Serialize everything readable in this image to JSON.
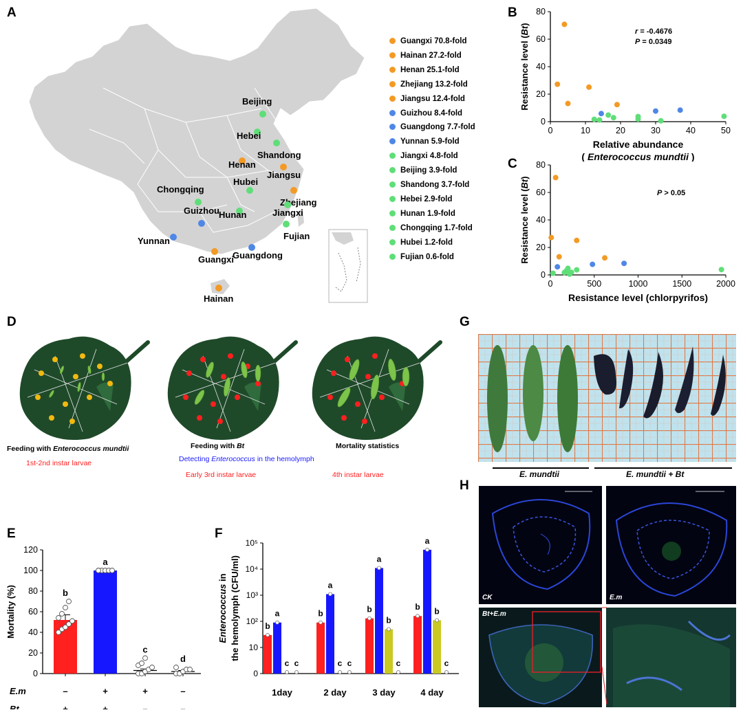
{
  "panels": {
    "a": "A",
    "b": "B",
    "c": "C",
    "d": "D",
    "e": "E",
    "f": "F",
    "g": "G",
    "h": "H"
  },
  "colors": {
    "orange": "#f39a25",
    "blue": "#4f87e6",
    "green": "#5fde78",
    "red": "#ff2020",
    "bar_blue": "#1717ff",
    "olive": "#c9c922",
    "map_fill": "#d3d3d3",
    "leaf": "#1f4a2a"
  },
  "map": {
    "provinces": [
      {
        "name": "Beijing",
        "color": "green"
      },
      {
        "name": "Hebei",
        "color": "green"
      },
      {
        "name": "Shandong",
        "color": "green"
      },
      {
        "name": "Henan",
        "color": "orange"
      },
      {
        "name": "Jiangsu",
        "color": "orange"
      },
      {
        "name": "Hubei",
        "color": "green"
      },
      {
        "name": "Chongqing",
        "color": "green"
      },
      {
        "name": "Zhejiang",
        "color": "orange"
      },
      {
        "name": "Jiangxi",
        "color": "green"
      },
      {
        "name": "Hunan",
        "color": "green"
      },
      {
        "name": "Guizhou",
        "color": "blue"
      },
      {
        "name": "Fujian",
        "color": "green"
      },
      {
        "name": "Yunnan",
        "color": "blue"
      },
      {
        "name": "Guangxi",
        "color": "orange"
      },
      {
        "name": "Guangdong",
        "color": "blue"
      },
      {
        "name": "Hainan",
        "color": "orange"
      }
    ],
    "legend": [
      {
        "text": "Guangxi 70.8-fold",
        "color": "orange"
      },
      {
        "text": "Hainan 27.2-fold",
        "color": "orange"
      },
      {
        "text": "Henan 25.1-fold",
        "color": "orange"
      },
      {
        "text": "Zhejiang 13.2-fold",
        "color": "orange"
      },
      {
        "text": "Jiangsu 12.4-fold",
        "color": "orange"
      },
      {
        "text": "Guizhou 8.4-fold",
        "color": "blue"
      },
      {
        "text": "Guangdong 7.7-fold",
        "color": "blue"
      },
      {
        "text": "Yunnan 5.9-fold",
        "color": "blue"
      },
      {
        "text": "Jiangxi 4.8-fold",
        "color": "green"
      },
      {
        "text": "Beijing 3.9-fold",
        "color": "green"
      },
      {
        "text": "Shandong 3.7-fold",
        "color": "green"
      },
      {
        "text": "Hebei 2.9-fold",
        "color": "green"
      },
      {
        "text": "Hunan 1.9-fold",
        "color": "green"
      },
      {
        "text": "Chongqing 1.7-fold",
        "color": "green"
      },
      {
        "text": "Hubei 1.2-fold",
        "color": "green"
      },
      {
        "text": "Fujian 0.6-fold",
        "color": "green"
      }
    ]
  },
  "workflow": {
    "step1": {
      "prefix": "Feeding with ",
      "italic": "Enterococcus mundtii",
      "stage": "1st-2nd instar larvae"
    },
    "step2": {
      "prefix": "Feeding with ",
      "italic": "Bt",
      "stage": "Early 3rd instar larvae"
    },
    "step3": {
      "label": "Mortality statistics",
      "stage": "4th instar larvae"
    },
    "detect": {
      "prefix": "Detecting ",
      "italic": "Enterococcus",
      "suffix": " in the hemolymph"
    }
  },
  "photo": {
    "label_left": "E. mundtii",
    "label_right": "E. mundtii + Bt"
  },
  "micro": {
    "labels": [
      "CK",
      "E.m",
      "Bt+E.m",
      ""
    ]
  },
  "chart_data": [
    {
      "id": "B",
      "type": "scatter",
      "xlabel": "Relative abundance",
      "xlabel2": "( Enterococcus mundtii )",
      "ylabel": "Resistance level (Bt)",
      "xlim": [
        0,
        50
      ],
      "ylim": [
        0,
        80
      ],
      "xticks": [
        0,
        10,
        20,
        30,
        40,
        50
      ],
      "yticks": [
        0,
        20,
        40,
        60,
        80
      ],
      "annotation_r": "r = -0.4676",
      "annotation_p": "P = 0.0349",
      "points": [
        {
          "x": 4,
          "y": 70.8,
          "c": "orange"
        },
        {
          "x": 2,
          "y": 27.2,
          "c": "orange"
        },
        {
          "x": 11,
          "y": 25.1,
          "c": "orange"
        },
        {
          "x": 5,
          "y": 13.2,
          "c": "orange"
        },
        {
          "x": 19,
          "y": 12.4,
          "c": "orange"
        },
        {
          "x": 37,
          "y": 8.4,
          "c": "blue"
        },
        {
          "x": 30,
          "y": 7.7,
          "c": "blue"
        },
        {
          "x": 14.5,
          "y": 5.9,
          "c": "blue"
        },
        {
          "x": 16.5,
          "y": 4.8,
          "c": "green"
        },
        {
          "x": 49.5,
          "y": 3.9,
          "c": "green"
        },
        {
          "x": 25,
          "y": 3.7,
          "c": "green"
        },
        {
          "x": 18,
          "y": 2.9,
          "c": "green"
        },
        {
          "x": 25,
          "y": 1.9,
          "c": "green"
        },
        {
          "x": 12.5,
          "y": 1.7,
          "c": "green"
        },
        {
          "x": 14,
          "y": 1.2,
          "c": "green"
        },
        {
          "x": 31.5,
          "y": 0.6,
          "c": "green"
        }
      ]
    },
    {
      "id": "C",
      "type": "scatter",
      "xlabel": "Resistance level (chlorpyrifos)",
      "ylabel": "Resistance level (Bt)",
      "xlim": [
        0,
        2000
      ],
      "ylim": [
        0,
        80
      ],
      "xticks": [
        0,
        500,
        1000,
        1500,
        2000
      ],
      "yticks": [
        0,
        20,
        40,
        60,
        80
      ],
      "annotation_p": "P > 0.05",
      "points": [
        {
          "x": 60,
          "y": 70.8,
          "c": "orange"
        },
        {
          "x": 10,
          "y": 27.2,
          "c": "orange"
        },
        {
          "x": 300,
          "y": 25.1,
          "c": "orange"
        },
        {
          "x": 100,
          "y": 13.2,
          "c": "orange"
        },
        {
          "x": 620,
          "y": 12.4,
          "c": "orange"
        },
        {
          "x": 840,
          "y": 8.4,
          "c": "blue"
        },
        {
          "x": 480,
          "y": 7.7,
          "c": "blue"
        },
        {
          "x": 80,
          "y": 5.9,
          "c": "blue"
        },
        {
          "x": 200,
          "y": 4.8,
          "c": "green"
        },
        {
          "x": 1950,
          "y": 3.9,
          "c": "green"
        },
        {
          "x": 300,
          "y": 3.7,
          "c": "green"
        },
        {
          "x": 180,
          "y": 2.9,
          "c": "green"
        },
        {
          "x": 240,
          "y": 1.9,
          "c": "green"
        },
        {
          "x": 160,
          "y": 1.7,
          "c": "green"
        },
        {
          "x": 30,
          "y": 1.2,
          "c": "green"
        },
        {
          "x": 220,
          "y": 0.6,
          "c": "green"
        }
      ]
    },
    {
      "id": "E",
      "type": "bar",
      "ylabel": "Mortality (%)",
      "ylim": [
        0,
        120
      ],
      "yticks": [
        0,
        20,
        40,
        60,
        80,
        100,
        120
      ],
      "row_labels": [
        "E.m",
        "Bt"
      ],
      "groups": [
        {
          "value": 52,
          "err": 5,
          "color": "red",
          "letter": "b",
          "em": "–",
          "bt": "+",
          "dots": [
            40,
            43,
            45,
            48,
            51,
            54,
            58,
            64,
            70
          ]
        },
        {
          "value": 100,
          "err": 0,
          "color": "bar_blue",
          "letter": "a",
          "em": "+",
          "bt": "+",
          "dots": [
            100,
            100,
            100,
            100,
            100,
            100
          ]
        },
        {
          "value": 3,
          "err": 1.5,
          "color": "none",
          "letter": "c",
          "em": "+",
          "bt": "–",
          "dots": [
            0,
            0,
            2,
            4,
            6,
            8,
            10,
            15
          ]
        },
        {
          "value": 2,
          "err": 1,
          "color": "none",
          "letter": "d",
          "em": "–",
          "bt": "–",
          "dots": [
            0,
            0,
            2,
            4,
            4,
            6
          ]
        }
      ]
    },
    {
      "id": "F",
      "type": "bar",
      "scale": "log",
      "ylabel1": "Enterococcus in",
      "ylabel2": "the hemolymph (CFU/ml)",
      "yticks": [
        "0",
        "10",
        "10²",
        "10³",
        "10⁴",
        "10⁵"
      ],
      "categories": [
        "1day",
        "2 day",
        "3 day",
        "4 day"
      ],
      "series_colors": [
        "red",
        "bar_blue",
        "olive",
        "none"
      ],
      "groups": [
        {
          "bars": [
            {
              "v": 30,
              "l": "b"
            },
            {
              "v": 90,
              "l": "a"
            },
            {
              "v": 0,
              "l": "c"
            },
            {
              "v": 0,
              "l": "c"
            }
          ]
        },
        {
          "bars": [
            {
              "v": 90,
              "l": "b"
            },
            {
              "v": 1100,
              "l": "a"
            },
            {
              "v": 0,
              "l": "c"
            },
            {
              "v": 0,
              "l": "c"
            }
          ]
        },
        {
          "bars": [
            {
              "v": 130,
              "l": "b"
            },
            {
              "v": 11000,
              "l": "a"
            },
            {
              "v": 50,
              "l": "b"
            },
            {
              "v": 0,
              "l": "c"
            }
          ]
        },
        {
          "bars": [
            {
              "v": 160,
              "l": "b"
            },
            {
              "v": 55000,
              "l": "a"
            },
            {
              "v": 110,
              "l": "b"
            },
            {
              "v": 0,
              "l": "c"
            }
          ]
        }
      ]
    }
  ]
}
